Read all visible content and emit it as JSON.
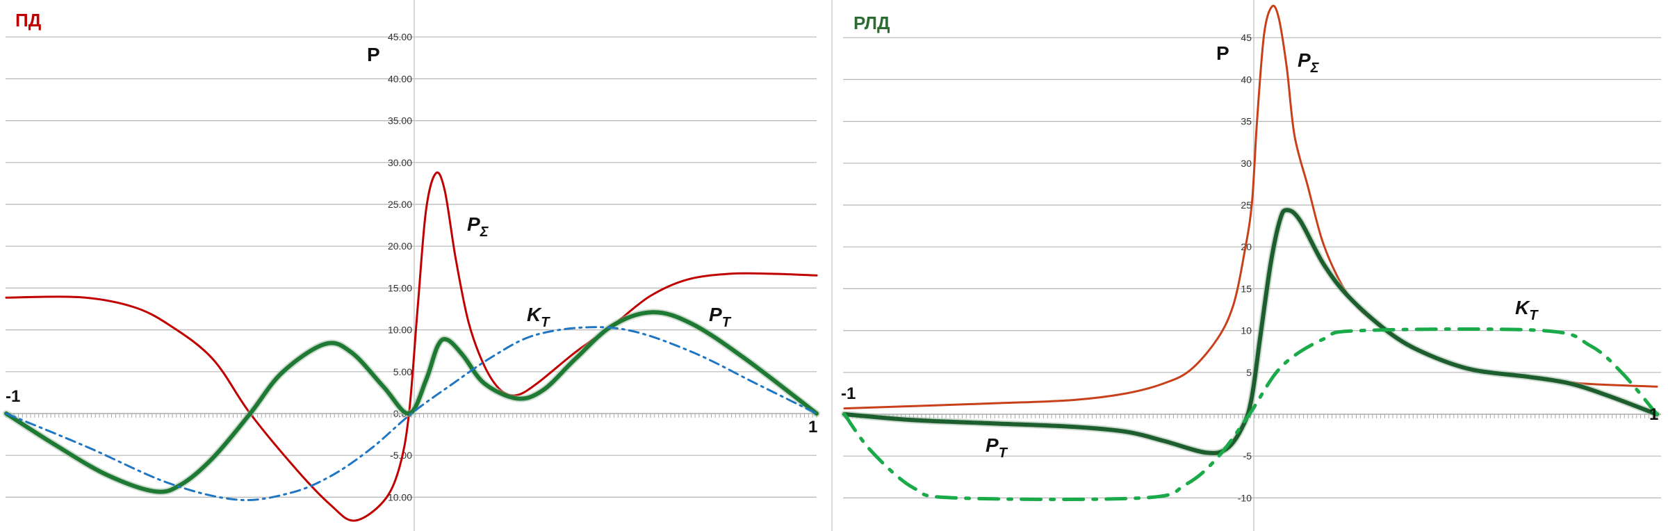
{
  "chart_data": [
    {
      "type": "line",
      "title": "ПД",
      "title_color": "#c00000",
      "ylabel": "P",
      "xlim": [
        -1,
        1
      ],
      "ylim": [
        -13,
        49
      ],
      "x_tick_labels": [
        "-1",
        "1"
      ],
      "y_ticks": [
        45,
        40,
        35,
        30,
        25,
        20,
        15,
        10,
        5,
        0,
        -5,
        -10
      ],
      "y_tick_labels": [
        "45.00",
        "40.00",
        "35.00",
        "30.00",
        "25.00",
        "20.00",
        "15.00",
        "10.00",
        "5.00",
        "0.00",
        "-5.00",
        "-10.00"
      ],
      "grid": true,
      "series": [
        {
          "name": "PΣ",
          "label_main": "P",
          "label_sub": "Σ",
          "color": "#c00000",
          "style": "solid",
          "x": [
            -1,
            -0.818,
            -0.687,
            -0.595,
            -0.49,
            -0.398,
            -0.28,
            -0.2,
            -0.141,
            -0.069,
            -0.03,
            -0.006,
            0.016,
            0.036,
            0.06,
            0.082,
            0.109,
            0.141,
            0.18,
            0.22,
            0.26,
            0.31,
            0.404,
            0.496,
            0.588,
            0.68,
            0.786,
            0.89,
            1
          ],
          "y": [
            13.85,
            13.9,
            12.75,
            10.5,
            6.5,
            0,
            -6.9,
            -10.9,
            -12.8,
            -10.5,
            -6.5,
            0,
            13,
            24.3,
            28.7,
            26.7,
            18.6,
            10.9,
            5.7,
            2.8,
            2.2,
            3.6,
            7.3,
            10.5,
            14,
            16,
            16.7,
            16.7,
            16.5
          ]
        },
        {
          "name": "PT",
          "label_main": "P",
          "label_sub": "T",
          "color": "#1e7a32",
          "style": "solid-thick",
          "x": [
            -1,
            -0.884,
            -0.753,
            -0.634,
            -0.569,
            -0.49,
            -0.398,
            -0.319,
            -0.214,
            -0.148,
            -0.069,
            -0.006,
            0.036,
            0.065,
            0.089,
            0.128,
            0.18,
            0.26,
            0.325,
            0.404,
            0.496,
            0.595,
            0.693,
            0.825,
            1
          ],
          "y": [
            0,
            -3.6,
            -7.3,
            -9.3,
            -8.5,
            -5.3,
            0,
            4.9,
            8.3,
            7.3,
            3.2,
            0,
            4,
            8.1,
            8.8,
            6.9,
            3.6,
            1.8,
            2.8,
            6.5,
            10.5,
            12.1,
            10.7,
            6.5,
            0
          ]
        },
        {
          "name": "KT",
          "label_main": "K",
          "label_sub": "T",
          "color": "#1f77c4",
          "style": "dash-dot",
          "x": [
            -1,
            -0.8,
            -0.6,
            -0.43,
            -0.3,
            -0.2,
            -0.1,
            0,
            0.1,
            0.2,
            0.3,
            0.43,
            0.55,
            0.7,
            0.85,
            1
          ],
          "y": [
            0,
            -4,
            -8.3,
            -10.3,
            -9.5,
            -7.5,
            -4.2,
            0,
            3.5,
            6.8,
            9.3,
            10.3,
            9.8,
            7.2,
            3.6,
            0
          ]
        }
      ]
    },
    {
      "type": "line",
      "title": "РЛД",
      "title_color": "#2e6b34",
      "ylabel": "P",
      "xlim": [
        -1,
        1
      ],
      "ylim": [
        -13,
        49
      ],
      "x_tick_labels": [
        "-1",
        "1"
      ],
      "y_ticks": [
        45,
        40,
        35,
        30,
        25,
        20,
        15,
        10,
        5,
        0,
        -5,
        -10
      ],
      "y_tick_labels": [
        "45",
        "40",
        "35",
        "30",
        "25",
        "20",
        "15",
        "10",
        "5",
        "0",
        "-5",
        "-10"
      ],
      "grid": true,
      "series": [
        {
          "name": "PΣ",
          "label_main": "P",
          "label_sub": "Σ",
          "color": "#c8401a",
          "style": "solid",
          "x": [
            -1,
            -0.633,
            -0.436,
            -0.305,
            -0.213,
            -0.148,
            -0.082,
            -0.043,
            -0.016,
            0.003,
            0.016,
            0.033,
            0.052,
            0.069,
            0.089,
            0.108,
            0.141,
            0.174,
            0.207,
            0.246,
            0.285,
            0.351,
            0.443,
            0.548,
            0.679,
            0.81,
            1
          ],
          "y": [
            0.7,
            1.3,
            1.7,
            2.5,
            3.7,
            5.3,
            9,
            13,
            19.1,
            25.2,
            35.3,
            45.4,
            48.7,
            47.4,
            41.4,
            33.3,
            27.2,
            21.1,
            17.1,
            13.8,
            11.8,
            9.4,
            7,
            5.3,
            4.5,
            3.7,
            3.3
          ]
        },
        {
          "name": "PT",
          "label_main": "P",
          "label_sub": "T",
          "color": "#1d5e2f",
          "style": "solid-thick",
          "x": [
            -1,
            -0.83,
            -0.633,
            -0.436,
            -0.305,
            -0.213,
            -0.108,
            -0.056,
            -0.016,
            0.003,
            0.023,
            0.049,
            0.072,
            0.089,
            0.121,
            0.18,
            0.246,
            0.351,
            0.443,
            0.548,
            0.679,
            0.784,
            0.875,
            1
          ],
          "y": [
            0,
            -0.7,
            -1.1,
            -1.5,
            -2.1,
            -3.2,
            -4.6,
            -4,
            -1.1,
            2.1,
            9,
            17.9,
            23.2,
            24.4,
            23.2,
            17.9,
            13.8,
            9.4,
            7,
            5.3,
            4.5,
            3.7,
            2.3,
            0
          ]
        },
        {
          "name": "KT",
          "label_main": "K",
          "label_sub": "T",
          "color": "#1aaa4a",
          "style": "dash-dot-thick",
          "x": [
            -1,
            -0.934,
            -0.83,
            -0.725,
            -0.266,
            -0.16,
            -0.082,
            -0.003,
            0.076,
            0.18,
            0.272,
            0.718,
            0.836,
            0.915,
            1
          ],
          "y": [
            0,
            -4.4,
            -8.8,
            -10,
            -10,
            -8.4,
            -5.2,
            0,
            5.7,
            9,
            10,
            10,
            8.2,
            4.9,
            0
          ]
        }
      ]
    }
  ]
}
